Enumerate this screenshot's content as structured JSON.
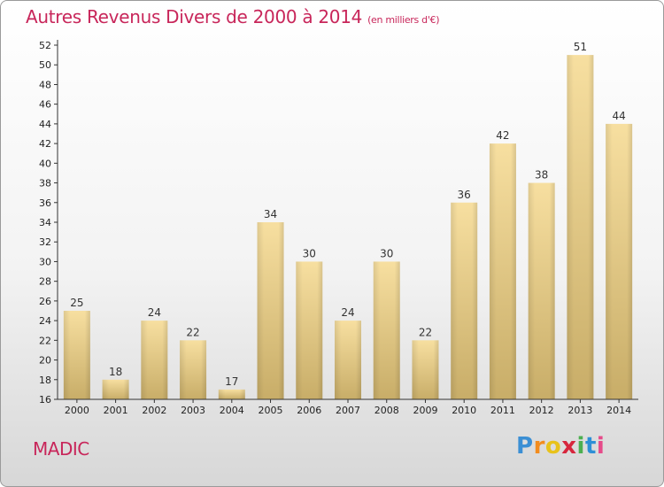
{
  "title": "Autres Revenus Divers de 2000 à 2014",
  "title_unit": "(en milliers d'€)",
  "commune": "MADIC",
  "logo": {
    "letters": [
      "P",
      "r",
      "o",
      "x",
      "i",
      "t",
      "i"
    ],
    "colors": [
      "#3b8fd4",
      "#f28c1e",
      "#e8c21a",
      "#d7263d",
      "#4caf50",
      "#2d8fd6",
      "#e64b8a"
    ]
  },
  "colors": {
    "title": "#c8265a",
    "bar_top": "#f7dfa0",
    "bar_bottom": "#c8ad68",
    "axis": "#333333"
  },
  "chart_data": {
    "type": "bar",
    "categories": [
      "2000",
      "2001",
      "2002",
      "2003",
      "2004",
      "2005",
      "2006",
      "2007",
      "2008",
      "2009",
      "2010",
      "2011",
      "2012",
      "2013",
      "2014"
    ],
    "values": [
      25,
      18,
      24,
      22,
      17,
      34,
      30,
      24,
      30,
      22,
      36,
      42,
      38,
      51,
      44
    ],
    "ylim": [
      16,
      52
    ],
    "yticks": [
      16,
      18,
      20,
      22,
      24,
      26,
      28,
      30,
      32,
      34,
      36,
      38,
      40,
      42,
      44,
      46,
      48,
      50,
      52
    ],
    "grid": false,
    "data_labels": true
  }
}
